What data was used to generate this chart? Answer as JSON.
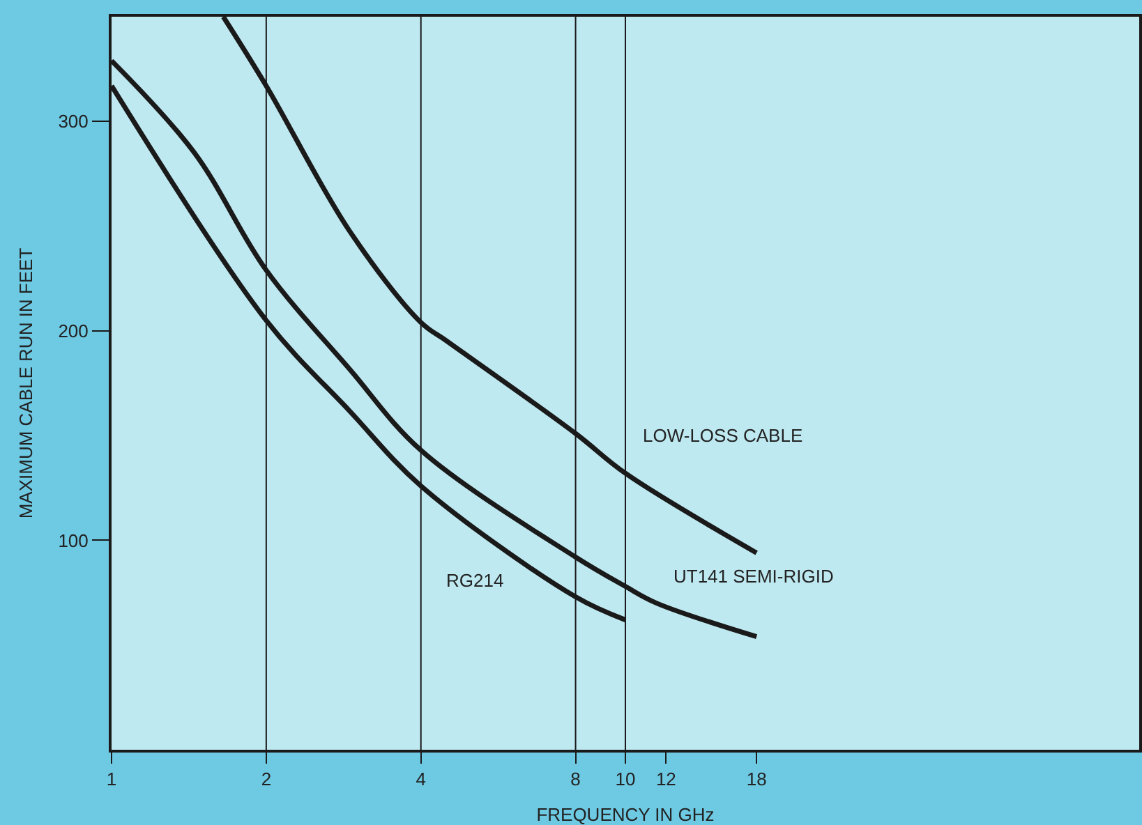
{
  "chart_data": {
    "type": "line",
    "xlabel": "FREQUENCY IN GHz",
    "ylabel": "MAXIMUM CABLE RUN IN FEET",
    "log": "x",
    "xlim": [
      1,
      100
    ],
    "xticks": [
      1,
      2,
      4,
      8,
      10,
      12,
      18
    ],
    "ylim": [
      0,
      350
    ],
    "yticks": [
      100,
      200,
      300
    ],
    "grid": false,
    "legend": false,
    "marker": "none",
    "line_style": "solid",
    "ref_lines": [
      {
        "axis": "x",
        "value": 2,
        "color": "#1a1a1a"
      },
      {
        "axis": "x",
        "value": 4,
        "color": "#1a1a1a"
      },
      {
        "axis": "x",
        "value": 8,
        "color": "#1a1a1a"
      },
      {
        "axis": "x",
        "value": 10,
        "color": "#1a1a1a"
      }
    ],
    "series": [
      {
        "name": "LOW-LOSS CABLE",
        "color": "#1a1a1a",
        "x": [
          1.65,
          2,
          2.9,
          4,
          4.5,
          8,
          10,
          18
        ],
        "values": [
          350,
          317,
          248,
          204,
          195,
          151,
          132,
          94
        ]
      },
      {
        "name": "UT141 SEMI-RIGID",
        "color": "#1a1a1a",
        "x": [
          1,
          1.45,
          2,
          2.9,
          4,
          8,
          10,
          11.5,
          18
        ],
        "values": [
          329,
          285,
          229,
          182,
          143,
          92,
          78,
          70,
          54
        ]
      },
      {
        "name": "RG214",
        "color": "#1a1a1a",
        "x": [
          1,
          2,
          2.9,
          4,
          8,
          10
        ],
        "values": [
          317,
          205,
          162,
          126,
          73,
          62
        ]
      }
    ]
  }
}
